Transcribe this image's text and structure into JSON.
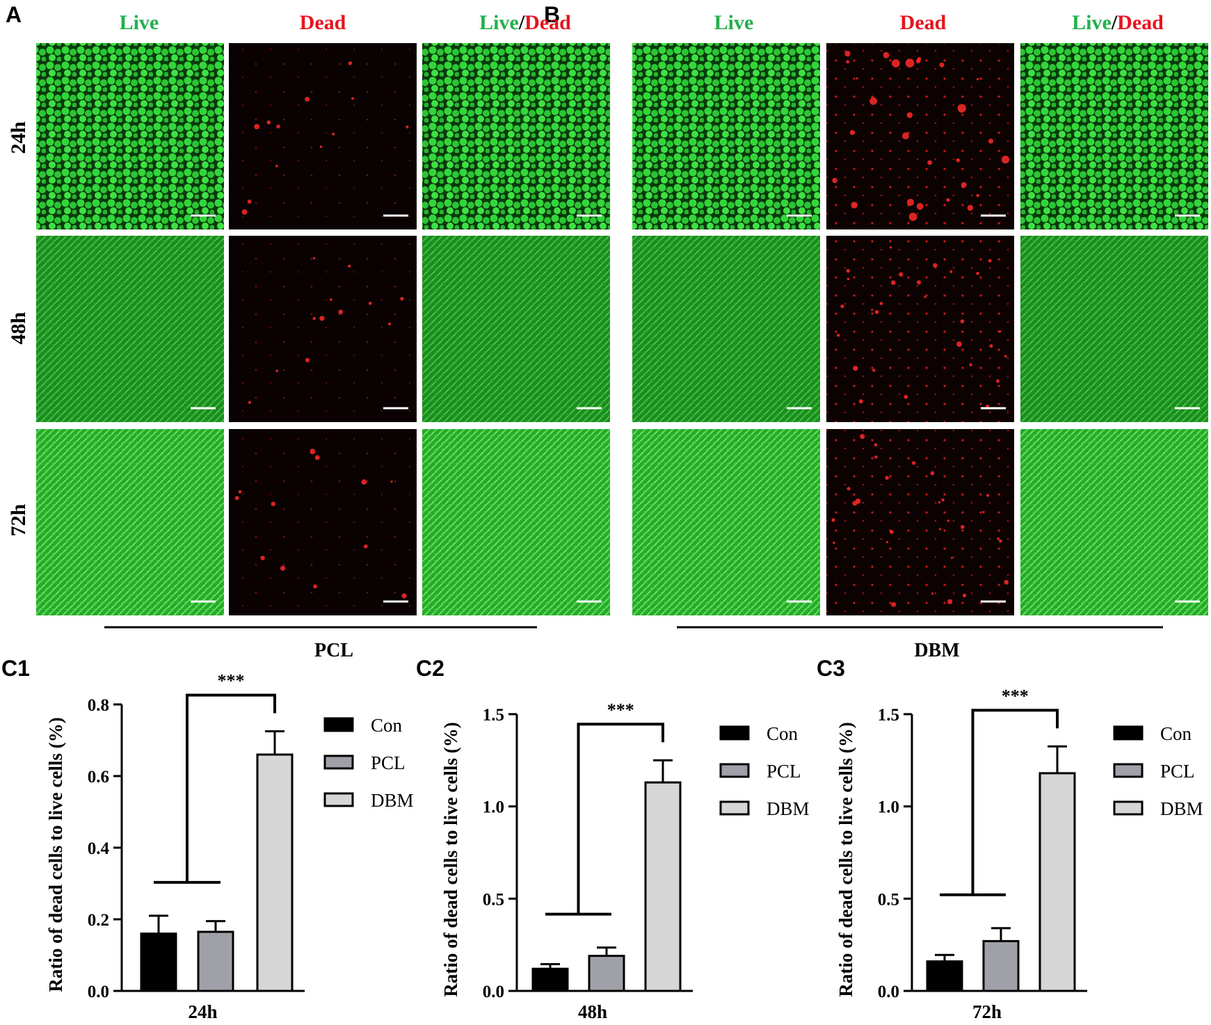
{
  "panels": {
    "a": "A",
    "b": "B",
    "c1": "C1",
    "c2": "C2",
    "c3": "C3"
  },
  "micrographs": {
    "column_headers": [
      "Live",
      "Dead",
      "Live/Dead"
    ],
    "live_word": "Live",
    "dead_word": "Dead",
    "separator": "/",
    "live_color": "#22b04b",
    "dead_color": "#e8141d",
    "row_labels": [
      "24h",
      "48h",
      "72h"
    ],
    "groups": [
      {
        "panel": "A",
        "label": "PCL"
      },
      {
        "panel": "B",
        "label": "DBM"
      }
    ]
  },
  "chart_data": [
    {
      "panel": "C1",
      "type": "bar",
      "categories": [
        "Con",
        "PCL",
        "DBM"
      ],
      "values": [
        0.16,
        0.165,
        0.66
      ],
      "errors": [
        0.05,
        0.03,
        0.065
      ],
      "colors": [
        "#000000",
        "#a0a0a8",
        "#d6d6d6"
      ],
      "xlabel": "24h",
      "ylabel": "Ratio of dead cells to live cells (%)",
      "ylim": [
        0,
        0.8
      ],
      "yticks": [
        "0.0",
        "0.2",
        "0.4",
        "0.6",
        "0.8"
      ],
      "legend": [
        "Con",
        "PCL",
        "DBM"
      ],
      "legend_position": "right",
      "significance": "***",
      "grid": false
    },
    {
      "panel": "C2",
      "type": "bar",
      "categories": [
        "Con",
        "PCL",
        "DBM"
      ],
      "values": [
        0.12,
        0.19,
        1.13
      ],
      "errors": [
        0.025,
        0.045,
        0.12
      ],
      "colors": [
        "#000000",
        "#a0a0a8",
        "#d6d6d6"
      ],
      "xlabel": "48h",
      "ylabel": "Ratio of dead cells to live cells (%)",
      "ylim": [
        0,
        1.5
      ],
      "yticks": [
        "0.0",
        "0.5",
        "1.0",
        "1.5"
      ],
      "legend": [
        "Con",
        "PCL",
        "DBM"
      ],
      "legend_position": "right",
      "significance": "***",
      "grid": false
    },
    {
      "panel": "C3",
      "type": "bar",
      "categories": [
        "Con",
        "PCL",
        "DBM"
      ],
      "values": [
        0.16,
        0.27,
        1.18
      ],
      "errors": [
        0.035,
        0.07,
        0.145
      ],
      "colors": [
        "#000000",
        "#a0a0a8",
        "#d6d6d6"
      ],
      "xlabel": "72h",
      "ylabel": "Ratio of dead cells to live cells (%)",
      "ylim": [
        0,
        1.5
      ],
      "yticks": [
        "0.0",
        "0.5",
        "1.0",
        "1.5"
      ],
      "legend": [
        "Con",
        "PCL",
        "DBM"
      ],
      "legend_position": "right",
      "significance": "***",
      "grid": false
    }
  ]
}
